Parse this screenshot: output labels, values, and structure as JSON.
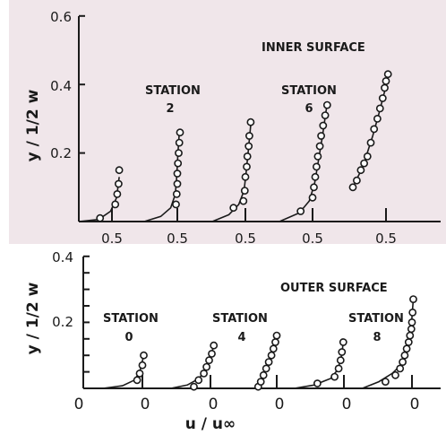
{
  "chart_data": [
    {
      "type": "scatter",
      "panel_label": "INNER SURFACE",
      "background": "#f0e6ea",
      "ylabel": "y / 1/2 w",
      "y_tick_labels": [
        "0.2",
        "0.4",
        "0.6"
      ],
      "x_tick_labels": [
        "0.5",
        "0.5",
        "0.5",
        "0.5",
        "0.5"
      ],
      "ylim": [
        0,
        0.6
      ],
      "station_labels": [
        {
          "title": "STATION",
          "number": "2"
        },
        {
          "title": "STATION",
          "number": "6"
        }
      ],
      "profiles": [
        {
          "points": [
            [
              0.32,
              0.01
            ],
            [
              0.55,
              0.05
            ],
            [
              0.58,
              0.08
            ],
            [
              0.6,
              0.11
            ],
            [
              0.61,
              0.15
            ]
          ],
          "curve": [
            [
              0.0,
              0.0
            ],
            [
              0.3,
              0.006
            ],
            [
              0.48,
              0.03
            ],
            [
              0.57,
              0.07
            ],
            [
              0.61,
              0.13
            ]
          ]
        },
        {
          "points": [
            [
              0.48,
              0.05
            ],
            [
              0.49,
              0.08
            ],
            [
              0.5,
              0.11
            ],
            [
              0.5,
              0.14
            ],
            [
              0.51,
              0.17
            ],
            [
              0.52,
              0.2
            ],
            [
              0.53,
              0.23
            ],
            [
              0.54,
              0.26
            ]
          ],
          "curve": [
            [
              0.0,
              0.0
            ],
            [
              0.25,
              0.015
            ],
            [
              0.4,
              0.04
            ],
            [
              0.47,
              0.08
            ],
            [
              0.49,
              0.13
            ],
            [
              0.51,
              0.2
            ],
            [
              0.53,
              0.26
            ]
          ]
        },
        {
          "points": [
            [
              0.32,
              0.04
            ],
            [
              0.47,
              0.06
            ],
            [
              0.49,
              0.09
            ],
            [
              0.5,
              0.13
            ],
            [
              0.52,
              0.16
            ],
            [
              0.53,
              0.19
            ],
            [
              0.55,
              0.22
            ],
            [
              0.56,
              0.25
            ],
            [
              0.58,
              0.29
            ]
          ],
          "curve": [
            [
              0.0,
              0.0
            ],
            [
              0.25,
              0.02
            ],
            [
              0.4,
              0.05
            ],
            [
              0.48,
              0.09
            ],
            [
              0.51,
              0.14
            ],
            [
              0.54,
              0.2
            ],
            [
              0.58,
              0.28
            ]
          ]
        },
        {
          "points": [
            [
              0.32,
              0.03
            ],
            [
              0.5,
              0.07
            ],
            [
              0.52,
              0.1
            ],
            [
              0.54,
              0.13
            ],
            [
              0.56,
              0.16
            ],
            [
              0.58,
              0.19
            ],
            [
              0.61,
              0.22
            ],
            [
              0.63,
              0.25
            ],
            [
              0.66,
              0.28
            ],
            [
              0.69,
              0.31
            ],
            [
              0.72,
              0.34
            ]
          ],
          "curve": [
            [
              0.0,
              0.0
            ],
            [
              0.3,
              0.025
            ],
            [
              0.45,
              0.06
            ],
            [
              0.53,
              0.11
            ],
            [
              0.59,
              0.18
            ],
            [
              0.65,
              0.25
            ],
            [
              0.71,
              0.33
            ]
          ]
        },
        {
          "points": [
            [
              0.0,
              0.1
            ],
            [
              0.06,
              0.12
            ],
            [
              0.12,
              0.15
            ],
            [
              0.17,
              0.17
            ],
            [
              0.22,
              0.19
            ],
            [
              0.27,
              0.23
            ],
            [
              0.32,
              0.27
            ],
            [
              0.37,
              0.3
            ],
            [
              0.41,
              0.33
            ],
            [
              0.45,
              0.36
            ],
            [
              0.48,
              0.39
            ],
            [
              0.5,
              0.41
            ],
            [
              0.53,
              0.43
            ]
          ],
          "curve": [
            [
              0.0,
              0.1
            ],
            [
              0.15,
              0.16
            ],
            [
              0.3,
              0.25
            ],
            [
              0.4,
              0.32
            ],
            [
              0.48,
              0.38
            ],
            [
              0.53,
              0.43
            ]
          ]
        }
      ]
    },
    {
      "type": "scatter",
      "panel_label": "OUTER SURFACE",
      "background": "#ffffff",
      "ylabel": "y / 1/2 w",
      "y_tick_labels": [
        "0.2",
        "0.4"
      ],
      "x_tick_labels": [
        "0",
        "0",
        "0",
        "0",
        "0"
      ],
      "xlabel": "u / u∞",
      "ylim": [
        0,
        0.4
      ],
      "station_labels": [
        {
          "title": "STATION",
          "number": "0"
        },
        {
          "title": "STATION",
          "number": "4"
        },
        {
          "title": "STATION",
          "number": "8"
        }
      ],
      "profiles": [
        {
          "points": [
            [
              -0.08,
              0.025
            ],
            [
              -0.04,
              0.045
            ],
            [
              0.0,
              0.07
            ],
            [
              0.02,
              0.1
            ]
          ],
          "curve": [
            [
              -0.6,
              0.0
            ],
            [
              -0.3,
              0.008
            ],
            [
              -0.12,
              0.025
            ],
            [
              -0.04,
              0.05
            ],
            [
              0.02,
              0.1
            ]
          ]
        },
        {
          "points": [
            [
              -0.25,
              0.005
            ],
            [
              -0.18,
              0.025
            ],
            [
              -0.1,
              0.045
            ],
            [
              -0.06,
              0.065
            ],
            [
              -0.02,
              0.085
            ],
            [
              0.02,
              0.105
            ],
            [
              0.05,
              0.13
            ]
          ],
          "curve": [
            [
              -0.6,
              0.0
            ],
            [
              -0.35,
              0.01
            ],
            [
              -0.17,
              0.03
            ],
            [
              -0.07,
              0.06
            ],
            [
              0.0,
              0.095
            ],
            [
              0.05,
              0.13
            ]
          ]
        },
        {
          "points": [
            [
              -0.28,
              0.005
            ],
            [
              -0.24,
              0.02
            ],
            [
              -0.2,
              0.04
            ],
            [
              -0.16,
              0.06
            ],
            [
              -0.12,
              0.08
            ],
            [
              -0.08,
              0.1
            ],
            [
              -0.05,
              0.12
            ],
            [
              -0.02,
              0.14
            ],
            [
              0.0,
              0.16
            ]
          ],
          "curve": [
            [
              -0.28,
              0.0
            ],
            [
              -0.2,
              0.04
            ],
            [
              -0.12,
              0.08
            ],
            [
              -0.05,
              0.12
            ],
            [
              0.0,
              0.16
            ]
          ]
        },
        {
          "points": [
            [
              -0.4,
              0.015
            ],
            [
              -0.14,
              0.035
            ],
            [
              -0.08,
              0.06
            ],
            [
              -0.05,
              0.085
            ],
            [
              -0.03,
              0.11
            ],
            [
              -0.01,
              0.14
            ]
          ],
          "curve": [
            [
              -0.75,
              0.0
            ],
            [
              -0.45,
              0.01
            ],
            [
              -0.2,
              0.03
            ],
            [
              -0.1,
              0.055
            ],
            [
              -0.04,
              0.09
            ],
            [
              -0.01,
              0.14
            ]
          ]
        },
        {
          "points": [
            [
              -0.4,
              0.02
            ],
            [
              -0.25,
              0.04
            ],
            [
              -0.18,
              0.06
            ],
            [
              -0.14,
              0.08
            ],
            [
              -0.11,
              0.1
            ],
            [
              -0.08,
              0.12
            ],
            [
              -0.05,
              0.14
            ],
            [
              -0.03,
              0.16
            ],
            [
              -0.01,
              0.18
            ],
            [
              0.0,
              0.2
            ],
            [
              0.01,
              0.23
            ],
            [
              0.02,
              0.27
            ]
          ],
          "curve": [
            [
              -0.75,
              0.0
            ],
            [
              -0.5,
              0.02
            ],
            [
              -0.3,
              0.045
            ],
            [
              -0.17,
              0.07
            ],
            [
              -0.1,
              0.1
            ],
            [
              -0.05,
              0.14
            ],
            [
              -0.01,
              0.19
            ],
            [
              0.02,
              0.27
            ]
          ]
        }
      ]
    }
  ]
}
